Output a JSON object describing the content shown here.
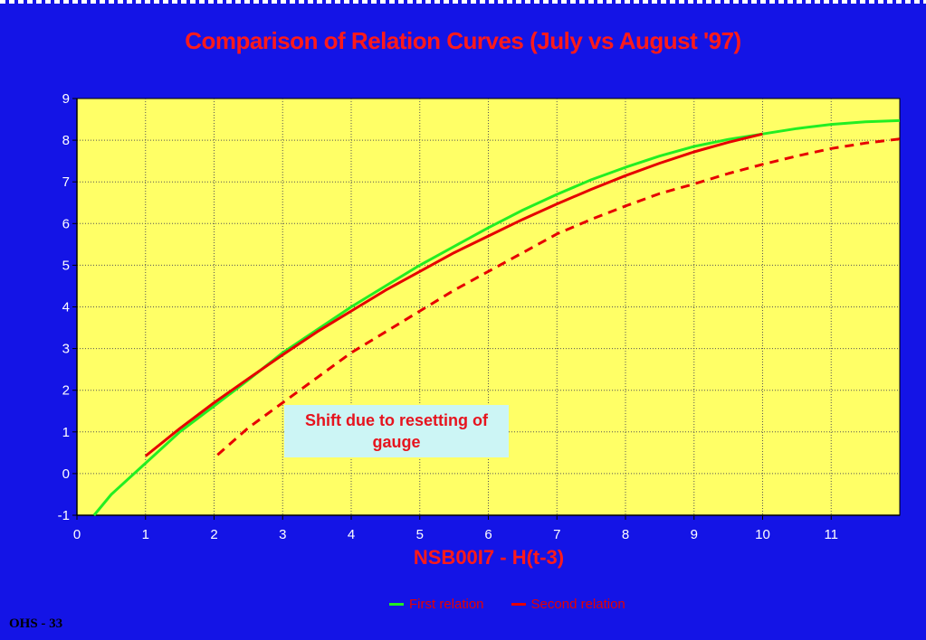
{
  "chart_data": {
    "type": "line",
    "title": "Comparison of Relation Curves (July vs August '97)",
    "xlabel": "NSB00I7 - H(t-3)",
    "ylabel": "",
    "xlim": [
      0,
      12
    ],
    "ylim": [
      -1,
      9
    ],
    "x_ticks": [
      "0",
      "1",
      "2",
      "3",
      "4",
      "5",
      "6",
      "7",
      "8",
      "9",
      "10",
      "11"
    ],
    "y_ticks": [
      "-1",
      "0",
      "1",
      "2",
      "3",
      "4",
      "5",
      "6",
      "7",
      "8",
      "9"
    ],
    "grid": true,
    "background_color": "#ffff66",
    "legend_position": "bottom",
    "series": [
      {
        "name": "First relation",
        "color": "#22ee22",
        "style": "solid",
        "x": [
          0.25,
          0.5,
          1,
          1.5,
          2,
          2.5,
          3,
          3.5,
          4,
          4.5,
          5,
          5.5,
          6,
          6.5,
          7,
          7.5,
          8,
          8.5,
          9,
          9.5,
          10,
          10.5,
          11,
          11.5,
          12
        ],
        "y": [
          -1.0,
          -0.5,
          0.25,
          1.0,
          1.62,
          2.25,
          2.9,
          3.45,
          4.0,
          4.5,
          5.0,
          5.45,
          5.9,
          6.32,
          6.7,
          7.05,
          7.35,
          7.62,
          7.85,
          8.02,
          8.15,
          8.28,
          8.38,
          8.44,
          8.47
        ]
      },
      {
        "name": "Second relation",
        "color": "#e60000",
        "style": "solid",
        "x": [
          1,
          1.5,
          2,
          2.5,
          3,
          3.5,
          4,
          4.5,
          5,
          5.5,
          6,
          6.5,
          7,
          7.5,
          8,
          8.5,
          9,
          9.5,
          10
        ],
        "y": [
          0.42,
          1.08,
          1.7,
          2.28,
          2.85,
          3.4,
          3.9,
          4.4,
          4.85,
          5.3,
          5.7,
          6.1,
          6.47,
          6.82,
          7.15,
          7.45,
          7.72,
          7.95,
          8.15
        ]
      },
      {
        "name": "",
        "color": "#e60000",
        "style": "dashed",
        "x": [
          2.05,
          2.5,
          3,
          3.5,
          4,
          4.5,
          5,
          5.5,
          6,
          6.5,
          7,
          7.5,
          8,
          8.5,
          9,
          9.5,
          10,
          10.5,
          11,
          11.5,
          12
        ],
        "y": [
          0.45,
          1.1,
          1.7,
          2.3,
          2.9,
          3.4,
          3.9,
          4.4,
          4.85,
          5.3,
          5.75,
          6.1,
          6.42,
          6.72,
          6.95,
          7.2,
          7.42,
          7.62,
          7.8,
          7.93,
          8.03
        ]
      }
    ],
    "annotations": [
      "Shift due to resetting of gauge"
    ]
  },
  "annotation_text": "Shift due to resetting of gauge",
  "legend": [
    {
      "label": "First relation",
      "color": "#22ee22"
    },
    {
      "label": "Second relation",
      "color": "#e60000"
    }
  ],
  "footer": "OHS - 33"
}
